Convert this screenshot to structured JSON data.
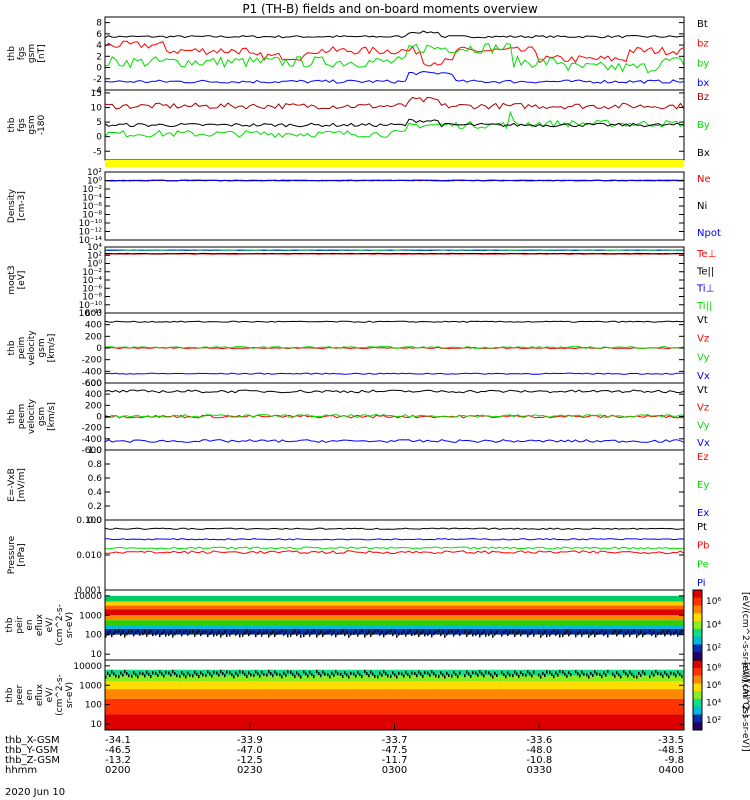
{
  "title": "P1 (TH-B) fields and on-board moments overview",
  "colors": {
    "black": "#000000",
    "red": "#ff0000",
    "darkred": "#aa0000",
    "green": "#00dd00",
    "blue": "#0000ff",
    "yellow": "#ffff00"
  },
  "chart_data": [
    {
      "type": "line",
      "ylabel": [
        "thb",
        "fgs",
        "gsm",
        "[nT]"
      ],
      "ylim": [
        -4,
        9
      ],
      "yticks": [
        "8",
        "6",
        "4",
        "2",
        "0",
        "-2",
        "-4"
      ],
      "yticks_values": [
        8,
        6,
        4,
        2,
        0,
        -2,
        -4
      ],
      "series": [
        {
          "name": "Bt",
          "color": "black",
          "base": 5.5,
          "noise": 0.2,
          "events": [
            [
              0.52,
              0.58,
              0.8
            ]
          ]
        },
        {
          "name": "bz",
          "color": "red",
          "base": 3.0,
          "noise": 0.7,
          "events": [
            [
              0.0,
              0.1,
              1.0
            ],
            [
              0.25,
              0.35,
              -1.0
            ],
            [
              0.55,
              0.6,
              -2.0
            ],
            [
              0.75,
              0.9,
              -1.5
            ]
          ]
        },
        {
          "name": "by",
          "color": "green",
          "base": 1.0,
          "noise": 1.0,
          "events": [
            [
              0.52,
              0.7,
              2.5
            ],
            [
              0.8,
              0.95,
              -1.0
            ]
          ]
        },
        {
          "name": "bx",
          "color": "blue",
          "base": -2.5,
          "noise": 0.3,
          "events": [
            [
              0.52,
              0.6,
              1.5
            ]
          ]
        }
      ]
    },
    {
      "type": "line",
      "ylabel": [
        "thb",
        "fgs",
        "gsm",
        "-180"
      ],
      "ylim": [
        -8,
        16
      ],
      "yticks": [
        "15",
        "10",
        "5",
        "0",
        "-5"
      ],
      "yticks_values": [
        15,
        10,
        5,
        0,
        -5
      ],
      "series": [
        {
          "name": "Bz",
          "color": "darkred",
          "base": 10.5,
          "noise": 1.0,
          "events": [
            [
              0.52,
              0.58,
              2.0
            ]
          ]
        },
        {
          "name": "By",
          "color": "green",
          "base": 1.0,
          "noise": 1.2,
          "events": [
            [
              0.52,
              0.7,
              3.0
            ],
            [
              0.7,
              1.0,
              3.5
            ]
          ]
        },
        {
          "name": "Bx",
          "color": "black",
          "base": 4.0,
          "noise": 0.6,
          "events": [
            [
              0.52,
              0.58,
              1.5
            ]
          ]
        }
      ]
    },
    {
      "type": "line",
      "ylabel": [
        "Density",
        "[cm-3]"
      ],
      "yscale": "log",
      "ylim": [
        -14,
        2
      ],
      "yticks": [
        "10²",
        "10⁰",
        "10⁻²",
        "10⁻⁴",
        "10⁻⁶",
        "10⁻⁸",
        "10⁻¹⁰",
        "10⁻¹²",
        "10⁻¹⁴"
      ],
      "yticks_values": [
        2,
        0,
        -2,
        -4,
        -6,
        -8,
        -10,
        -12,
        -14
      ],
      "series": [
        {
          "name": "Ne",
          "color": "red",
          "base": 0.0,
          "noise": 0.1
        },
        {
          "name": "Ni",
          "color": "black",
          "base": 0.0,
          "noise": 0.1
        },
        {
          "name": "Npot",
          "color": "blue",
          "base": 0.0,
          "noise": 0.1
        }
      ]
    },
    {
      "type": "line",
      "ylabel": [
        "moqt3",
        "[eV]"
      ],
      "yscale": "log",
      "ylim": [
        -12,
        4
      ],
      "yticks": [
        "10⁴",
        "10²",
        "10⁰",
        "10⁻²",
        "10⁻⁴",
        "10⁻⁶",
        "10⁻⁸",
        "10⁻¹⁰",
        "10⁻¹²"
      ],
      "yticks_values": [
        4,
        2,
        0,
        -2,
        -4,
        -6,
        -8,
        -10,
        -12
      ],
      "series": [
        {
          "name": "Te⊥",
          "color": "red",
          "base": 2.3,
          "noise": 0.05
        },
        {
          "name": "Te||",
          "color": "black",
          "base": 2.4,
          "noise": 0.05
        },
        {
          "name": "Ti⊥",
          "color": "blue",
          "base": 3.2,
          "noise": 0.05
        },
        {
          "name": "Ti||",
          "color": "green",
          "base": 3.3,
          "noise": 0.05
        }
      ]
    },
    {
      "type": "line",
      "ylabel": [
        "thb",
        "peim",
        "velocity",
        "gsm",
        "[km/s]"
      ],
      "ylim": [
        -600,
        600
      ],
      "yticks": [
        "600",
        "400",
        "200",
        "0",
        "-200",
        "-400",
        "-600"
      ],
      "yticks_values": [
        600,
        400,
        200,
        0,
        -200,
        -400,
        -600
      ],
      "series": [
        {
          "name": "Vt",
          "color": "black",
          "base": 450,
          "noise": 10
        },
        {
          "name": "Vz",
          "color": "red",
          "base": 0,
          "noise": 10
        },
        {
          "name": "Vy",
          "color": "green",
          "base": 10,
          "noise": 15
        },
        {
          "name": "Vx",
          "color": "blue",
          "base": -440,
          "noise": 10
        }
      ]
    },
    {
      "type": "line",
      "ylabel": [
        "thb",
        "peem",
        "velocity",
        "gsm",
        "[km/s]"
      ],
      "ylim": [
        -600,
        600
      ],
      "yticks": [
        "600",
        "400",
        "200",
        "0",
        "-200",
        "-400",
        "-600"
      ],
      "yticks_values": [
        600,
        400,
        200,
        0,
        -200,
        -400,
        -600
      ],
      "series": [
        {
          "name": "Vt",
          "color": "black",
          "base": 450,
          "noise": 25
        },
        {
          "name": "Vz",
          "color": "red",
          "base": 0,
          "noise": 25
        },
        {
          "name": "Vy",
          "color": "green",
          "base": 10,
          "noise": 25
        },
        {
          "name": "Vx",
          "color": "blue",
          "base": -440,
          "noise": 25
        }
      ]
    },
    {
      "type": "line",
      "ylabel": [
        "E=-VxB",
        "[mV/m]"
      ],
      "ylim": [
        0,
        1
      ],
      "yticks": [
        "1.0",
        "0.8",
        "0.6",
        "0.4",
        "0.2",
        "0.0"
      ],
      "yticks_values": [
        1.0,
        0.8,
        0.6,
        0.4,
        0.2,
        0.0
      ],
      "series": [
        {
          "name": "Ez",
          "color": "red"
        },
        {
          "name": "Ey",
          "color": "green"
        },
        {
          "name": "Ex",
          "color": "blue"
        }
      ]
    },
    {
      "type": "line",
      "ylabel": [
        "Pressure",
        "[nPa]"
      ],
      "yscale": "log",
      "ylim": [
        -3,
        -1
      ],
      "yticks": [
        "0.100",
        "0.010",
        "0.001"
      ],
      "yticks_values": [
        -1,
        -2,
        -3
      ],
      "series": [
        {
          "name": "Pt",
          "color": "black",
          "base": -1.25,
          "noise": 0.02
        },
        {
          "name": "Pb",
          "color": "red",
          "base": -1.92,
          "noise": 0.04
        },
        {
          "name": "Pe",
          "color": "green",
          "base": -1.8,
          "noise": 0.03
        },
        {
          "name": "Pi",
          "color": "blue",
          "base": -1.55,
          "noise": 0.02
        }
      ]
    },
    {
      "type": "heatmap",
      "ylabel": [
        "thb",
        "peir",
        "en",
        "eflux",
        "eV/",
        "(cm^2-s-",
        "sr-eV)"
      ],
      "yscale": "log",
      "ylim": [
        0.7,
        4.3
      ],
      "yticks": [
        "10000",
        "1000",
        "100",
        "10"
      ],
      "yticks_values": [
        4,
        3,
        2,
        1
      ],
      "colorbar": {
        "label": "[eV/(cm^2-s-sr-eV)] (All Qs)",
        "ticks": [
          "10⁶",
          "10⁴",
          "10²"
        ]
      }
    },
    {
      "type": "heatmap",
      "ylabel": [
        "thb",
        "peer",
        "en",
        "eflux",
        "eV/",
        "(cm^2-s-",
        "sr-eV)"
      ],
      "yscale": "log",
      "ylim": [
        0.7,
        4.3
      ],
      "yticks": [
        "10000",
        "1000",
        "100",
        "10"
      ],
      "yticks_values": [
        4,
        3,
        2,
        1
      ],
      "colorbar": {
        "label": "[eV/(cm^2-s-sr-eV)]",
        "ticks": [
          "10⁸",
          "10⁶",
          "10⁴",
          "10²"
        ]
      }
    }
  ],
  "xaxis": {
    "rows": [
      {
        "label": "thb_X-GSM",
        "values": [
          "-34.1",
          "-33.9",
          "-33.7",
          "-33.6",
          "-33.5"
        ]
      },
      {
        "label": "thb_Y-GSM",
        "values": [
          "-46.5",
          "-47.0",
          "-47.5",
          "-48.0",
          "-48.5"
        ]
      },
      {
        "label": "thb_Z-GSM",
        "values": [
          "-13.2",
          "-12.5",
          "-11.7",
          "-10.8",
          "-9.8"
        ]
      },
      {
        "label": "hhmm",
        "values": [
          "0200",
          "0230",
          "0300",
          "0330",
          "0400"
        ]
      }
    ],
    "date": "2020 Jun 10"
  }
}
